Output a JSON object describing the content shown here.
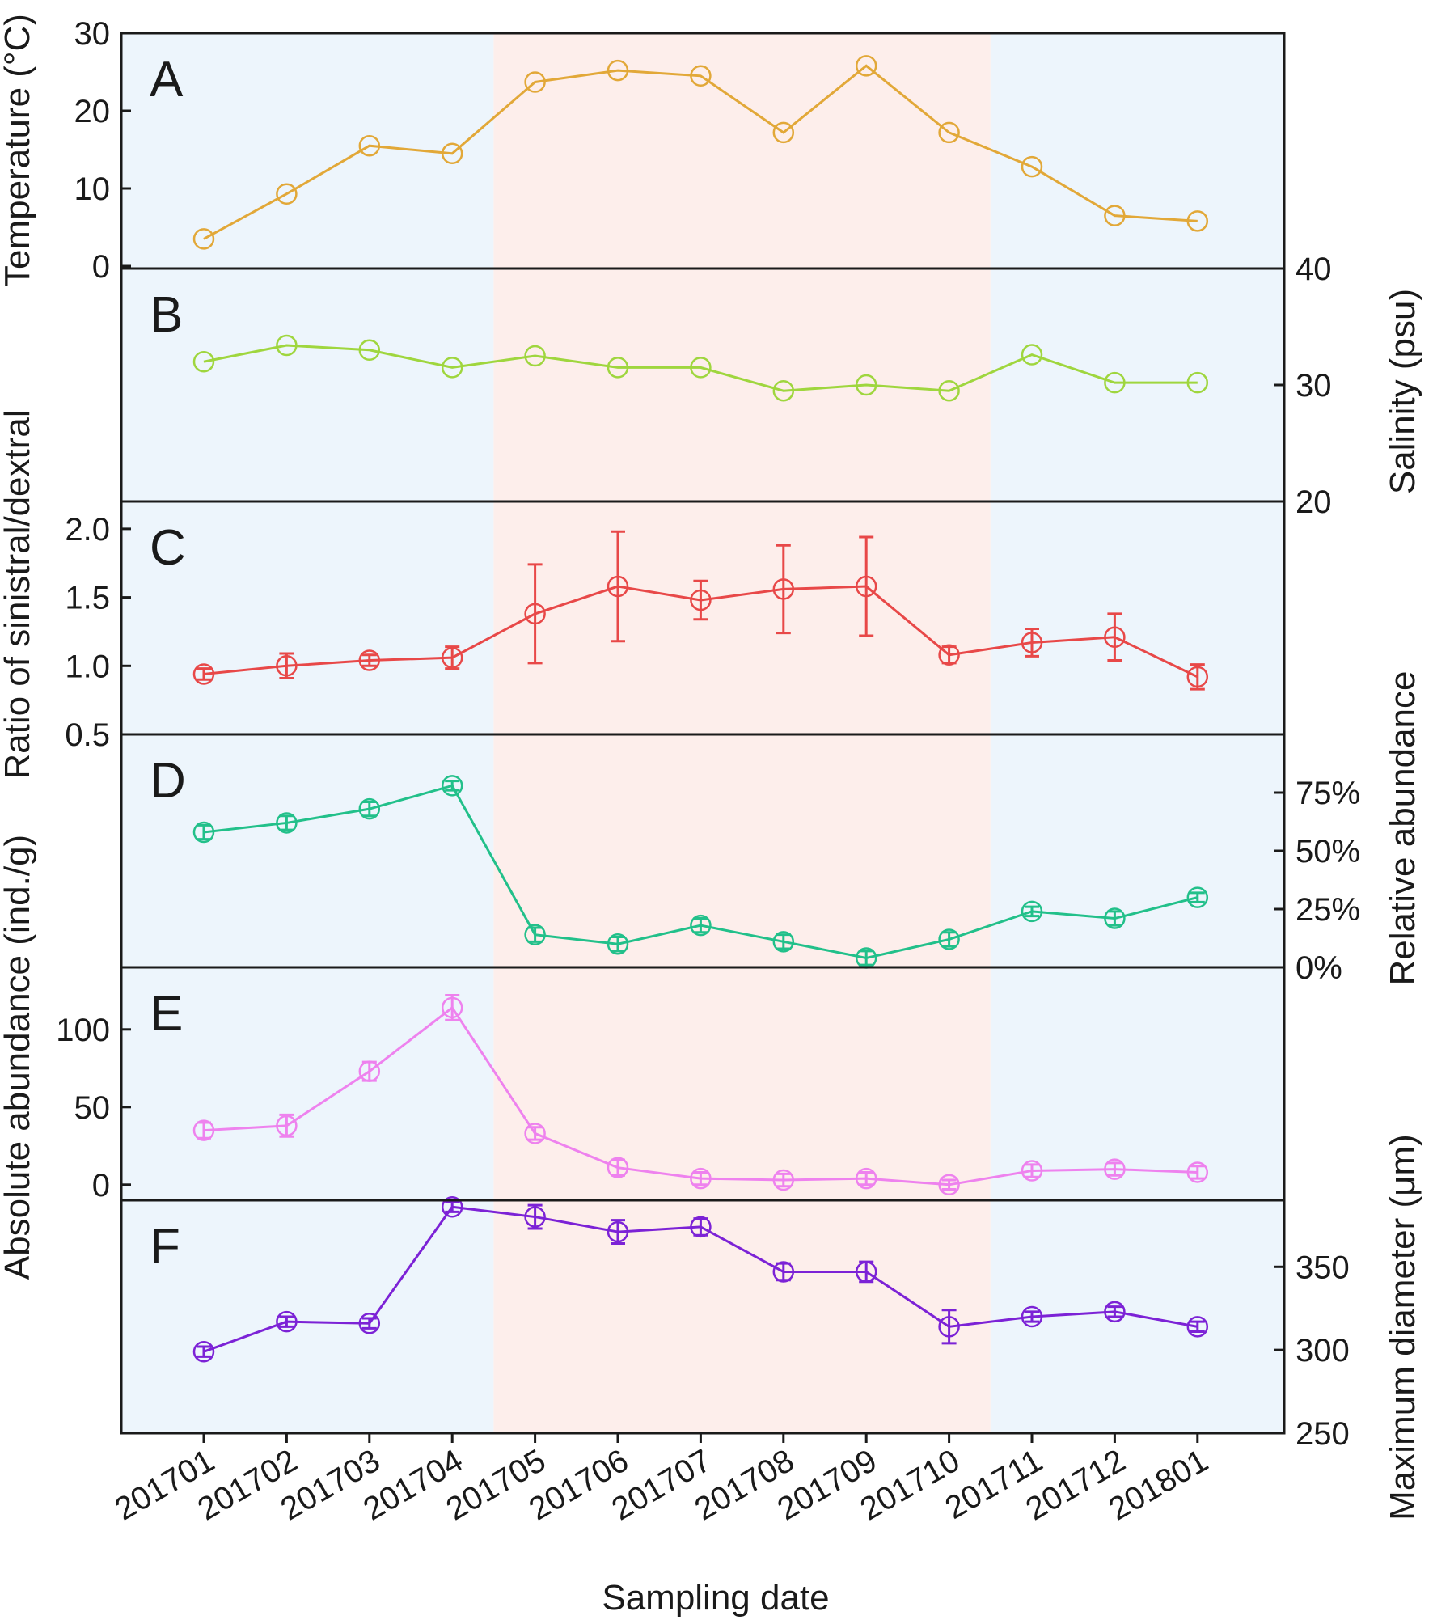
{
  "figure": {
    "xlabel": "Sampling date",
    "dates": [
      "201701",
      "201702",
      "201703",
      "201704",
      "201705",
      "201706",
      "201707",
      "201708",
      "201709",
      "201710",
      "201711",
      "201712",
      "201801"
    ],
    "shading": [
      {
        "from_index": 0,
        "to_index": 3.5,
        "color": "#edf5fc"
      },
      {
        "from_index": 3.5,
        "to_index": 9.5,
        "color": "#fdeeeb"
      },
      {
        "from_index": 9.5,
        "to_index": 12,
        "color": "#edf5fc"
      }
    ],
    "left_axis_titles": {
      "temperature": "Temperature (°C)",
      "ratio": "Ratio of sinistral/dextral",
      "absolute": "Absolute abundance (ind./g)"
    },
    "right_axis_titles": {
      "salinity": "Salinity (psu)",
      "relative": "Relative abundance",
      "diameter": "Maximum diameter (μm)"
    }
  },
  "chart_data": [
    {
      "panel": "A",
      "type": "line",
      "ylabel": "Temperature (°C)",
      "axis_side": "left",
      "ylim": [
        0,
        30
      ],
      "ticks": [
        0,
        10,
        20,
        30
      ],
      "tick_labels": [
        "0",
        "10",
        "20",
        "30"
      ],
      "color": "#e2a838",
      "values": [
        3.5,
        9.3,
        15.5,
        14.5,
        23.7,
        25.2,
        24.5,
        17.2,
        25.8,
        17.2,
        12.8,
        6.5,
        5.8
      ],
      "errors": null
    },
    {
      "panel": "B",
      "type": "line",
      "ylabel": "Salinity (psu)",
      "axis_side": "right",
      "ylim": [
        20,
        40
      ],
      "ticks": [
        20,
        30,
        40
      ],
      "tick_labels": [
        "20",
        "30",
        "40"
      ],
      "color": "#9fd63e",
      "values": [
        32.0,
        33.4,
        33.0,
        31.5,
        32.5,
        31.5,
        31.5,
        29.5,
        30.0,
        29.5,
        32.6,
        30.2,
        30.2
      ],
      "errors": null
    },
    {
      "panel": "C",
      "type": "line",
      "ylabel": "Ratio of sinistral/dextral",
      "axis_side": "left",
      "ylim": [
        0.5,
        2.2
      ],
      "ticks": [
        0.5,
        1.0,
        1.5,
        2.0
      ],
      "tick_labels": [
        "0.5",
        "1.0",
        "1.5",
        "2.0"
      ],
      "color": "#e84848",
      "values": [
        0.94,
        1.0,
        1.04,
        1.06,
        1.38,
        1.58,
        1.48,
        1.56,
        1.58,
        1.08,
        1.17,
        1.21,
        0.92
      ],
      "errors": [
        0.04,
        0.09,
        0.04,
        0.08,
        0.36,
        0.4,
        0.14,
        0.32,
        0.36,
        0.06,
        0.1,
        0.17,
        0.09
      ]
    },
    {
      "panel": "D",
      "type": "line",
      "ylabel": "Relative abundance",
      "axis_side": "right",
      "ylim": [
        0,
        1.0
      ],
      "ticks": [
        0,
        0.25,
        0.5,
        0.75
      ],
      "tick_labels": [
        "0%",
        "25%",
        "50%",
        "75%"
      ],
      "color": "#22c08a",
      "values": [
        0.58,
        0.62,
        0.68,
        0.78,
        0.14,
        0.1,
        0.18,
        0.11,
        0.04,
        0.12,
        0.24,
        0.21,
        0.3
      ],
      "errors": [
        0.03,
        0.03,
        0.03,
        0.02,
        0.03,
        0.03,
        0.03,
        0.03,
        0.03,
        0.03,
        0.02,
        0.03,
        0.02
      ]
    },
    {
      "panel": "E",
      "type": "line",
      "ylabel": "Absolute abundance (ind./g)",
      "axis_side": "left",
      "ylim": [
        -10,
        140
      ],
      "ticks": [
        0,
        50,
        100
      ],
      "tick_labels": [
        "0",
        "50",
        "100"
      ],
      "color": "#ee82ee",
      "values": [
        35,
        38,
        73,
        114,
        33,
        11,
        4,
        3,
        4,
        0,
        9,
        10,
        8
      ],
      "errors": [
        5,
        7,
        6,
        8,
        4,
        5,
        4,
        4,
        4,
        3,
        4,
        4,
        4
      ]
    },
    {
      "panel": "F",
      "type": "line",
      "ylabel": "Maximum diameter (μm)",
      "axis_side": "right",
      "ylim": [
        250,
        390
      ],
      "ticks": [
        250,
        300,
        350
      ],
      "tick_labels": [
        "250",
        "300",
        "350"
      ],
      "color": "#7c22d6",
      "values": [
        299,
        317,
        316,
        386,
        380,
        371,
        374,
        347,
        347,
        314,
        320,
        323,
        314
      ],
      "errors": [
        3,
        3,
        3,
        3,
        7,
        7,
        5,
        5,
        6,
        10,
        3,
        3,
        3
      ]
    }
  ]
}
